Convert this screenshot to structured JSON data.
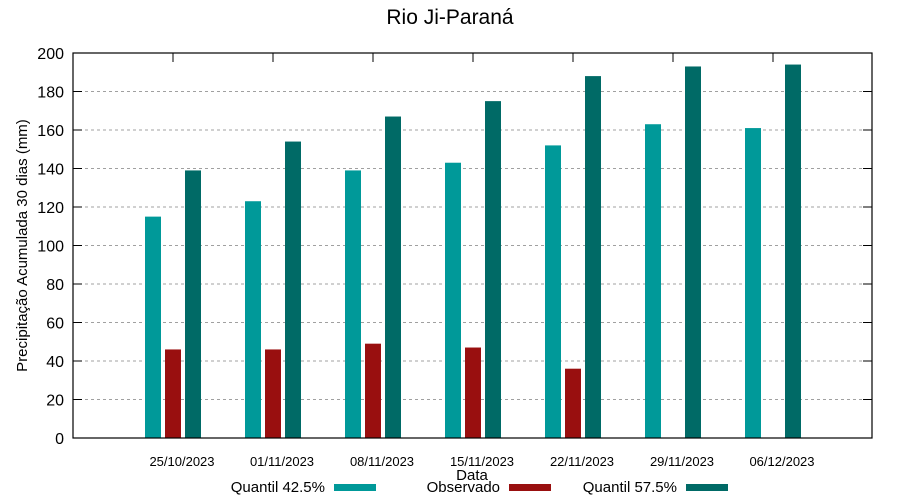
{
  "chart_data": {
    "type": "bar",
    "title": "Rio Ji-Paraná",
    "xlabel": "Data",
    "ylabel": "Precipitação Acumulada 30 dias (mm)",
    "ylim": [
      0,
      200
    ],
    "yticks": [
      0,
      20,
      40,
      60,
      80,
      100,
      120,
      140,
      160,
      180,
      200
    ],
    "grid": true,
    "legend_position": "bottom",
    "categories": [
      "25/10/2023",
      "01/11/2023",
      "08/11/2023",
      "15/11/2023",
      "22/11/2023",
      "29/11/2023",
      "06/12/2023"
    ],
    "series": [
      {
        "name": "Quantil 42.5%",
        "color": "#009999",
        "values": [
          115,
          123,
          139,
          143,
          152,
          163,
          161
        ]
      },
      {
        "name": "Observado",
        "color": "#990f0f",
        "values": [
          46,
          46,
          49,
          47,
          36,
          null,
          null
        ]
      },
      {
        "name": "Quantil 57.5%",
        "color": "#006a66",
        "values": [
          139,
          154,
          167,
          175,
          188,
          193,
          194
        ]
      }
    ]
  }
}
